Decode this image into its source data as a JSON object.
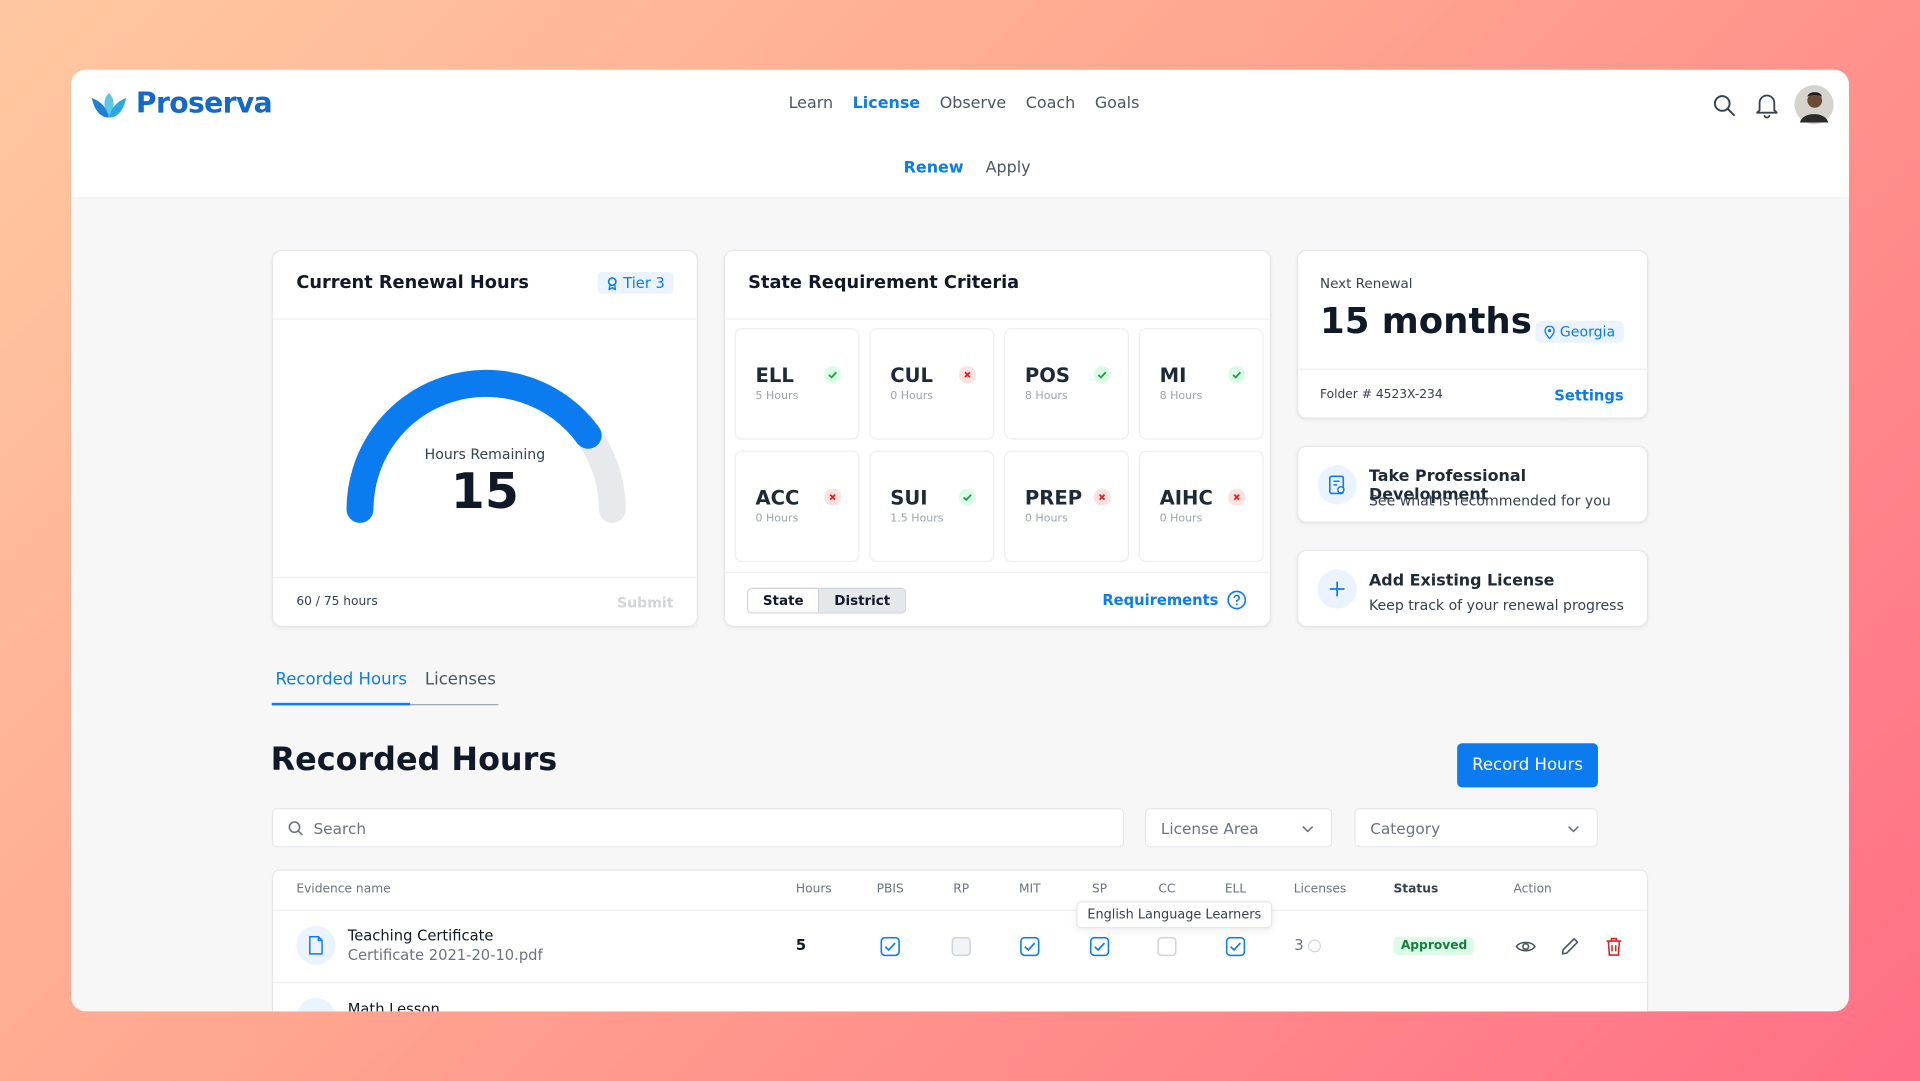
{
  "brand": "Proserva",
  "nav": {
    "items": [
      "Learn",
      "License",
      "Observe",
      "Coach",
      "Goals"
    ],
    "active": 1
  },
  "subnav": {
    "items": [
      "Renew",
      "Apply"
    ],
    "active": 0
  },
  "renewal_card": {
    "title": "Current Renewal Hours",
    "tier": "Tier 3",
    "gauge_label": "Hours Remaining",
    "hours_remaining": 15,
    "progress": "60 / 75 hours",
    "submit": "Submit"
  },
  "criteria": {
    "title": "State Requirement Criteria",
    "items": [
      {
        "code": "ELL",
        "hours": "5 Hours",
        "met": true
      },
      {
        "code": "CUL",
        "hours": "0 Hours",
        "met": false
      },
      {
        "code": "POS",
        "hours": "8 Hours",
        "met": true
      },
      {
        "code": "MI",
        "hours": "8 Hours",
        "met": true
      },
      {
        "code": "ACC",
        "hours": "0 Hours",
        "met": false
      },
      {
        "code": "SUI",
        "hours": "1.5 Hours",
        "met": true
      },
      {
        "code": "PREP",
        "hours": "0 Hours",
        "met": false
      },
      {
        "code": "AIHC",
        "hours": "0 Hours",
        "met": false
      }
    ],
    "toggle": {
      "items": [
        "State",
        "District"
      ],
      "active": 1
    },
    "link": "Requirements"
  },
  "next_renewal": {
    "label": "Next Renewal",
    "value": "15 months",
    "location": "Georgia",
    "folder": "Folder # 4523X-234",
    "settings": "Settings"
  },
  "actions": [
    {
      "title": "Take Professional Development",
      "subtitle": "See what is recommended for you"
    },
    {
      "title": "Add Existing License",
      "subtitle": "Keep track of your renewal progress"
    }
  ],
  "tabs": {
    "items": [
      "Recorded Hours",
      "Licenses"
    ],
    "active": 0
  },
  "section": {
    "title": "Recorded Hours",
    "button": "Record Hours",
    "search": "Search",
    "filters": [
      "License Area",
      "Category"
    ]
  },
  "table": {
    "columns": [
      "Evidence name",
      "Hours",
      "PBIS",
      "RP",
      "MIT",
      "SP",
      "CC",
      "ELL",
      "Licenses",
      "Status",
      "Action"
    ],
    "tooltip": "English Language Learners",
    "rows": [
      {
        "name": "Teaching Certificate",
        "file": "Certificate 2021-20-10.pdf",
        "hours": 5,
        "checks": [
          true,
          false,
          true,
          true,
          false,
          true
        ],
        "licenses": 3,
        "status": "Approved"
      },
      {
        "name": "Math Lesson"
      }
    ]
  }
}
